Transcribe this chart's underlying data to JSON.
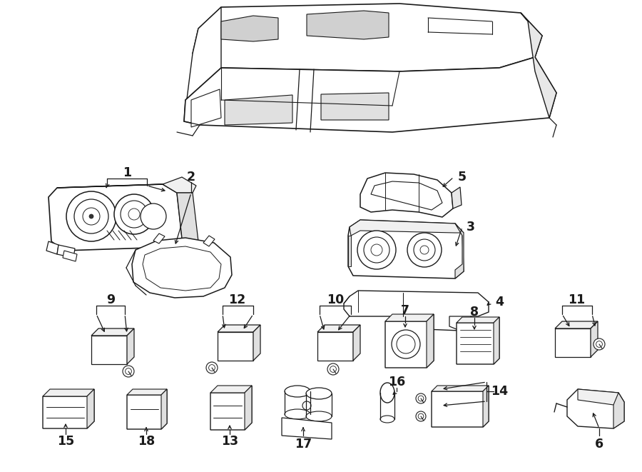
{
  "background_color": "#ffffff",
  "line_color": "#1a1a1a",
  "figsize": [
    9.0,
    6.61
  ],
  "dpi": 100
}
